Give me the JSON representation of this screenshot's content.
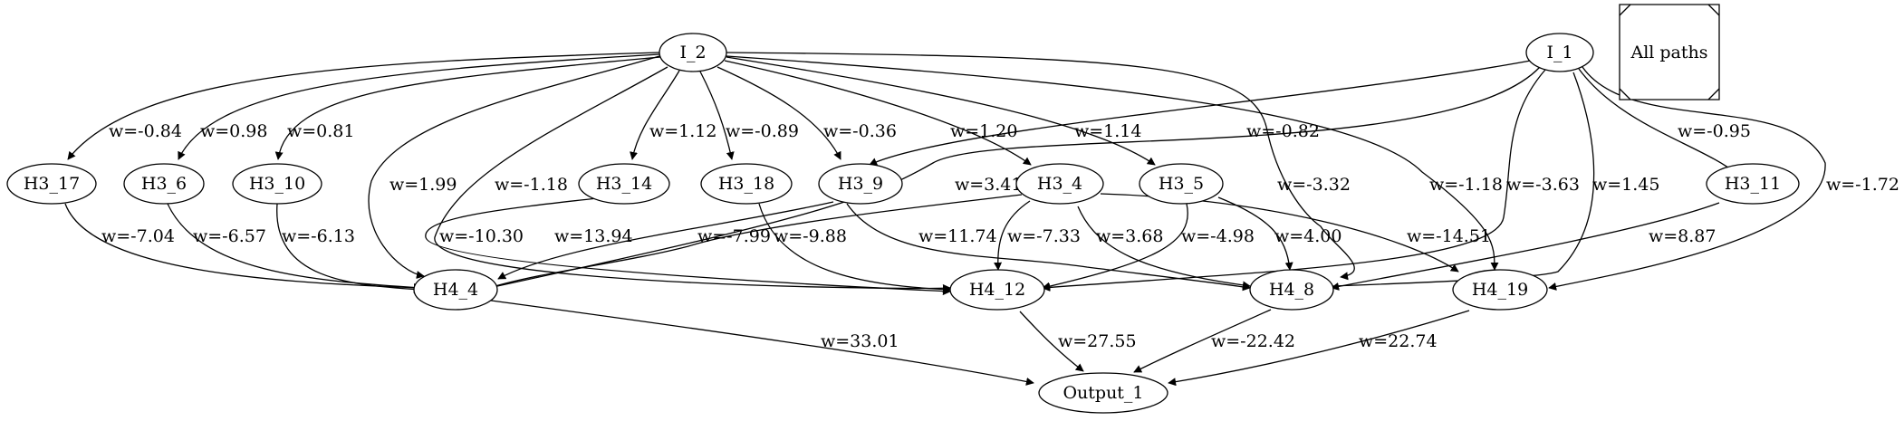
{
  "legend_label": "All paths",
  "nodes": {
    "I_2": "I_2",
    "I_1": "I_1",
    "H3_17": "H3_17",
    "H3_6": "H3_6",
    "H3_10": "H3_10",
    "H3_14": "H3_14",
    "H3_18": "H3_18",
    "H3_9": "H3_9",
    "H3_4": "H3_4",
    "H3_5": "H3_5",
    "H3_11": "H3_11",
    "H4_4": "H4_4",
    "H4_12": "H4_12",
    "H4_8": "H4_8",
    "H4_19": "H4_19",
    "Output_1": "Output_1"
  },
  "edges": [
    {
      "id": "e1",
      "from": "I_2",
      "to": "H3_17",
      "label": "w=-0.84"
    },
    {
      "id": "e2",
      "from": "I_2",
      "to": "H3_6",
      "label": "w=0.98"
    },
    {
      "id": "e3",
      "from": "I_2",
      "to": "H3_10",
      "label": "w=0.81"
    },
    {
      "id": "e4",
      "from": "I_2",
      "to": "H3_14",
      "label": "w=1.12"
    },
    {
      "id": "e5",
      "from": "I_2",
      "to": "H3_18",
      "label": "w=-0.89"
    },
    {
      "id": "e6",
      "from": "I_2",
      "to": "H3_9",
      "label": "w=-0.36"
    },
    {
      "id": "e7",
      "from": "I_2",
      "to": "H3_4",
      "label": "w=1.20"
    },
    {
      "id": "e8",
      "from": "I_2",
      "to": "H3_5",
      "label": "w=1.14"
    },
    {
      "id": "e9",
      "from": "I_2",
      "to": "H4_4",
      "label": "w=1.99"
    },
    {
      "id": "e10",
      "from": "I_2",
      "to": "H4_12",
      "label": "w=-1.18"
    },
    {
      "id": "e11",
      "from": "I_2",
      "to": "H4_8",
      "label": "w=-3.32"
    },
    {
      "id": "e12",
      "from": "I_2",
      "to": "H4_19",
      "label": "w=-1.18"
    },
    {
      "id": "e13",
      "from": "I_1",
      "to": "H3_9",
      "label": "w=-0.82"
    },
    {
      "id": "e14",
      "from": "I_1",
      "to": "H4_4",
      "label": "w=3.41"
    },
    {
      "id": "e15",
      "from": "I_1",
      "to": "H4_12",
      "label": "w=-3.63"
    },
    {
      "id": "e16",
      "from": "I_1",
      "to": "H4_8",
      "label": "w=1.45"
    },
    {
      "id": "e17",
      "from": "I_1",
      "to": "H3_11",
      "label": "w=-0.95"
    },
    {
      "id": "e18",
      "from": "I_1",
      "to": "H4_19",
      "label": "w=-1.72"
    },
    {
      "id": "e19",
      "from": "H3_17",
      "to": "H4_4",
      "label": "w=-7.04"
    },
    {
      "id": "e20",
      "from": "H3_6",
      "to": "H4_4",
      "label": "w=-6.57"
    },
    {
      "id": "e21",
      "from": "H3_10",
      "to": "H4_4",
      "label": "w=-6.13"
    },
    {
      "id": "e22",
      "from": "H3_14",
      "to": "H4_12",
      "label": "w=-10.30"
    },
    {
      "id": "e23",
      "from": "H3_18",
      "to": "H4_12",
      "label": "w=-9.88"
    },
    {
      "id": "e24",
      "from": "H3_9",
      "to": "H4_4",
      "label": "w=13.94"
    },
    {
      "id": "e25",
      "from": "H3_9",
      "to": "H4_8",
      "label": "w=11.74"
    },
    {
      "id": "e26",
      "from": "H3_4",
      "to": "H4_4",
      "label": "w=-7.99"
    },
    {
      "id": "e27",
      "from": "H3_4",
      "to": "H4_12",
      "label": "w=-7.33"
    },
    {
      "id": "e28",
      "from": "H3_4",
      "to": "H4_8",
      "label": "w=3.68"
    },
    {
      "id": "e29",
      "from": "H3_4",
      "to": "H4_19",
      "label": "w=-14.51"
    },
    {
      "id": "e30",
      "from": "H3_5",
      "to": "H4_12",
      "label": "w=-4.98"
    },
    {
      "id": "e31",
      "from": "H3_5",
      "to": "H4_8",
      "label": "w=4.00"
    },
    {
      "id": "e32",
      "from": "H3_11",
      "to": "H4_8",
      "label": "w=8.87"
    },
    {
      "id": "e33",
      "from": "H4_4",
      "to": "Output_1",
      "label": "w=33.01"
    },
    {
      "id": "e34",
      "from": "H4_12",
      "to": "Output_1",
      "label": "w=27.55"
    },
    {
      "id": "e35",
      "from": "H4_8",
      "to": "Output_1",
      "label": "w=-22.42"
    },
    {
      "id": "e36",
      "from": "H4_19",
      "to": "Output_1",
      "label": "w=22.74"
    }
  ]
}
